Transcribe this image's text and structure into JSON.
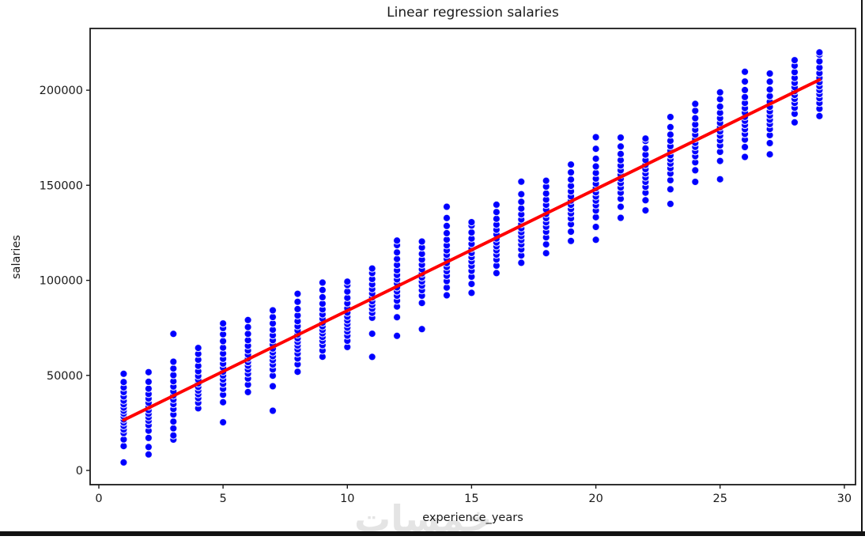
{
  "frame": {
    "background": "#ffffff",
    "border_color": "#111111"
  },
  "watermark": {
    "text": "خمسات",
    "color_hint": "#e3e3e3"
  },
  "chart_data": {
    "type": "scatter",
    "title": "Linear regression salaries",
    "xlabel": "experience_years",
    "ylabel": "salaries",
    "xlim": [
      -0.35,
      30.45
    ],
    "ylim": [
      -7500,
      232500
    ],
    "grid": false,
    "legend": null,
    "xticks": {
      "values": [
        0,
        5,
        10,
        15,
        20,
        25,
        30
      ],
      "labels": [
        "0",
        "5",
        "10",
        "15",
        "20",
        "25",
        "30"
      ]
    },
    "yticks": {
      "values": [
        0,
        50000,
        100000,
        150000,
        200000
      ],
      "labels": [
        "0",
        "50000",
        "100000",
        "150000",
        "200000"
      ]
    },
    "marker": {
      "color": "#0000ff",
      "edge_color": "#ffffff",
      "radius": 4.6
    },
    "regression_line": {
      "color": "#ff0000",
      "width": 4,
      "x": [
        1,
        29
      ],
      "y": [
        26500,
        205500
      ]
    },
    "axis_color": "#1a1a1a",
    "points": [
      {
        "x": 1,
        "salaries": [
          4200,
          12800,
          16300,
          19600,
          21500,
          23400,
          25200,
          26800,
          28300,
          29900,
          31400,
          33000,
          34800,
          36700,
          38900,
          41200,
          43600,
          46500,
          50800
        ]
      },
      {
        "x": 2,
        "salaries": [
          8400,
          12300,
          17100,
          20900,
          23800,
          26100,
          28000,
          29800,
          31700,
          33600,
          35600,
          37800,
          40200,
          43000,
          46600,
          51700
        ]
      },
      {
        "x": 3,
        "salaries": [
          16200,
          18400,
          22100,
          25700,
          29400,
          32300,
          34900,
          37200,
          39400,
          41600,
          44100,
          46900,
          50100,
          53600,
          57200,
          71800
        ]
      },
      {
        "x": 4,
        "salaries": [
          32700,
          35600,
          38000,
          40100,
          42000,
          43900,
          45800,
          47700,
          49700,
          52200,
          55000,
          58200,
          61300,
          64400
        ]
      },
      {
        "x": 5,
        "salaries": [
          25300,
          35900,
          39800,
          42900,
          45500,
          47800,
          49900,
          51900,
          54000,
          56200,
          58700,
          61500,
          64600,
          68000,
          71600,
          74900,
          77300
        ]
      },
      {
        "x": 6,
        "salaries": [
          41200,
          45100,
          48300,
          50900,
          53100,
          55100,
          57000,
          58900,
          60900,
          63100,
          65600,
          68500,
          71800,
          75400,
          79100
        ]
      },
      {
        "x": 7,
        "salaries": [
          31400,
          44300,
          49800,
          53100,
          55700,
          58000,
          60100,
          62100,
          64100,
          66200,
          68500,
          71100,
          74000,
          77300,
          80700,
          84200
        ]
      },
      {
        "x": 8,
        "salaries": [
          51900,
          55800,
          58900,
          61500,
          63700,
          65700,
          67600,
          69500,
          71500,
          73600,
          75900,
          78500,
          81500,
          84900,
          88700,
          92900
        ]
      },
      {
        "x": 9,
        "salaries": [
          59800,
          63100,
          65900,
          68200,
          70200,
          72100,
          73900,
          75800,
          77700,
          79800,
          82100,
          84700,
          87700,
          91100,
          94900,
          98800
        ]
      },
      {
        "x": 10,
        "salaries": [
          64900,
          68200,
          70900,
          73100,
          75100,
          77000,
          78900,
          80900,
          83000,
          85300,
          87900,
          90800,
          94100,
          97500,
          99300
        ]
      },
      {
        "x": 11,
        "salaries": [
          59700,
          71900,
          80300,
          82900,
          85100,
          87100,
          89000,
          91000,
          93100,
          95400,
          97900,
          100700,
          103800,
          106200
        ]
      },
      {
        "x": 12,
        "salaries": [
          70800,
          80600,
          86200,
          89300,
          91900,
          94200,
          96300,
          98400,
          100500,
          102800,
          105300,
          108100,
          111200,
          114700,
          118500,
          120900
        ]
      },
      {
        "x": 13,
        "salaries": [
          74300,
          88100,
          91900,
          94800,
          97200,
          99400,
          101500,
          103600,
          105800,
          108200,
          110900,
          113900,
          117300,
          120400
        ]
      },
      {
        "x": 14,
        "salaries": [
          92100,
          96200,
          99600,
          102400,
          104800,
          107000,
          109100,
          111200,
          113400,
          115800,
          118400,
          121400,
          124800,
          128600,
          132800,
          138700
        ]
      },
      {
        "x": 15,
        "salaries": [
          93400,
          98100,
          101900,
          105000,
          107600,
          110000,
          112200,
          114400,
          116700,
          119200,
          122000,
          125200,
          128800,
          130600
        ]
      },
      {
        "x": 16,
        "salaries": [
          103800,
          107700,
          110900,
          113500,
          115800,
          117900,
          119900,
          122000,
          124200,
          126600,
          129300,
          132400,
          135900,
          139800
        ]
      },
      {
        "x": 17,
        "salaries": [
          109200,
          113100,
          116300,
          118900,
          121200,
          123300,
          125300,
          127400,
          129600,
          132000,
          134700,
          137800,
          141300,
          145300,
          151900
        ]
      },
      {
        "x": 18,
        "salaries": [
          114300,
          118900,
          122600,
          125600,
          128200,
          130500,
          132700,
          134900,
          137200,
          139700,
          142500,
          145700,
          149300,
          152400
        ]
      },
      {
        "x": 19,
        "salaries": [
          120700,
          125600,
          129500,
          132600,
          135200,
          137500,
          139700,
          141900,
          144200,
          146800,
          149700,
          153000,
          156800,
          160900
        ]
      },
      {
        "x": 20,
        "salaries": [
          121300,
          128100,
          133200,
          136700,
          139500,
          141900,
          144100,
          146300,
          148500,
          150900,
          153500,
          156500,
          159900,
          164000,
          169200,
          175300
        ]
      },
      {
        "x": 21,
        "salaries": [
          132900,
          138700,
          142900,
          146100,
          148800,
          151200,
          153400,
          155600,
          157900,
          160400,
          163200,
          166500,
          170400,
          175100
        ]
      },
      {
        "x": 22,
        "salaries": [
          136800,
          142100,
          146100,
          149200,
          151800,
          154100,
          156300,
          158500,
          160800,
          163300,
          166100,
          169400,
          173300,
          174600
        ]
      },
      {
        "x": 23,
        "salaries": [
          140200,
          147900,
          152700,
          156200,
          159000,
          161400,
          163600,
          165800,
          168100,
          170600,
          173400,
          176700,
          180600,
          185900
        ]
      },
      {
        "x": 24,
        "salaries": [
          151800,
          157900,
          162100,
          165300,
          167900,
          170200,
          172300,
          174400,
          176700,
          179200,
          182000,
          185300,
          189200,
          192800
        ]
      },
      {
        "x": 25,
        "salaries": [
          153200,
          162800,
          167600,
          171000,
          173700,
          176100,
          178300,
          180500,
          182800,
          185300,
          188100,
          191400,
          195300,
          198900
        ]
      },
      {
        "x": 26,
        "salaries": [
          164900,
          170100,
          174000,
          177000,
          179500,
          181800,
          183900,
          186000,
          188200,
          190600,
          193300,
          196400,
          200100,
          204600,
          209700
        ]
      },
      {
        "x": 27,
        "salaries": [
          166300,
          172200,
          176400,
          179600,
          182200,
          184500,
          186700,
          188900,
          191300,
          193900,
          196900,
          200400,
          204500,
          208800
        ]
      },
      {
        "x": 28,
        "salaries": [
          183100,
          187600,
          190800,
          193300,
          195500,
          197500,
          199500,
          201600,
          203900,
          206500,
          209500,
          212900,
          215800
        ]
      },
      {
        "x": 29,
        "salaries": [
          186400,
          190300,
          193300,
          195800,
          198000,
          200100,
          202100,
          204200,
          206500,
          209000,
          211900,
          215200,
          218700,
          219900
        ]
      }
    ]
  }
}
